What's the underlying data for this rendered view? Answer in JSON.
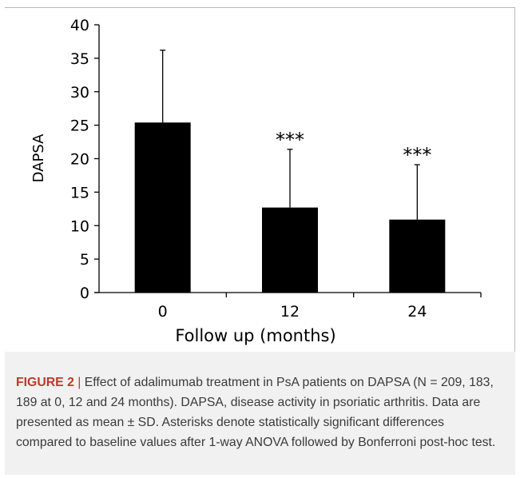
{
  "chart_data": {
    "type": "bar",
    "categories": [
      "0",
      "12",
      "24"
    ],
    "values": [
      25.4,
      12.7,
      10.9
    ],
    "error_sd": [
      10.8,
      8.7,
      8.2
    ],
    "annotations": [
      "",
      "***",
      "***"
    ],
    "title": "",
    "xlabel": "Follow up (months)",
    "ylabel": "DAPSA",
    "ylim": [
      0,
      40
    ],
    "yticks": [
      0,
      5,
      10,
      15,
      20,
      25,
      30,
      35,
      40
    ],
    "grid": false,
    "legend": "none",
    "bar_color": "#000000"
  },
  "caption": {
    "label": "FIGURE 2",
    "separator": "|",
    "text": "Effect of adalimumab treatment in PsA patients on DAPSA (N = 209, 183, 189 at 0, 12 and 24 months). DAPSA, disease activity in psoriatic arthritis. Data are presented as mean ± SD. Asterisks denote statistically significant differences compared to baseline values after 1-way ANOVA followed by Bonferroni post-hoc test."
  },
  "colors": {
    "caption_background": "#f1f1f1",
    "caption_label": "#c0392b",
    "caption_text": "#3a3a3a",
    "frame_border": "#b9b9b9"
  }
}
